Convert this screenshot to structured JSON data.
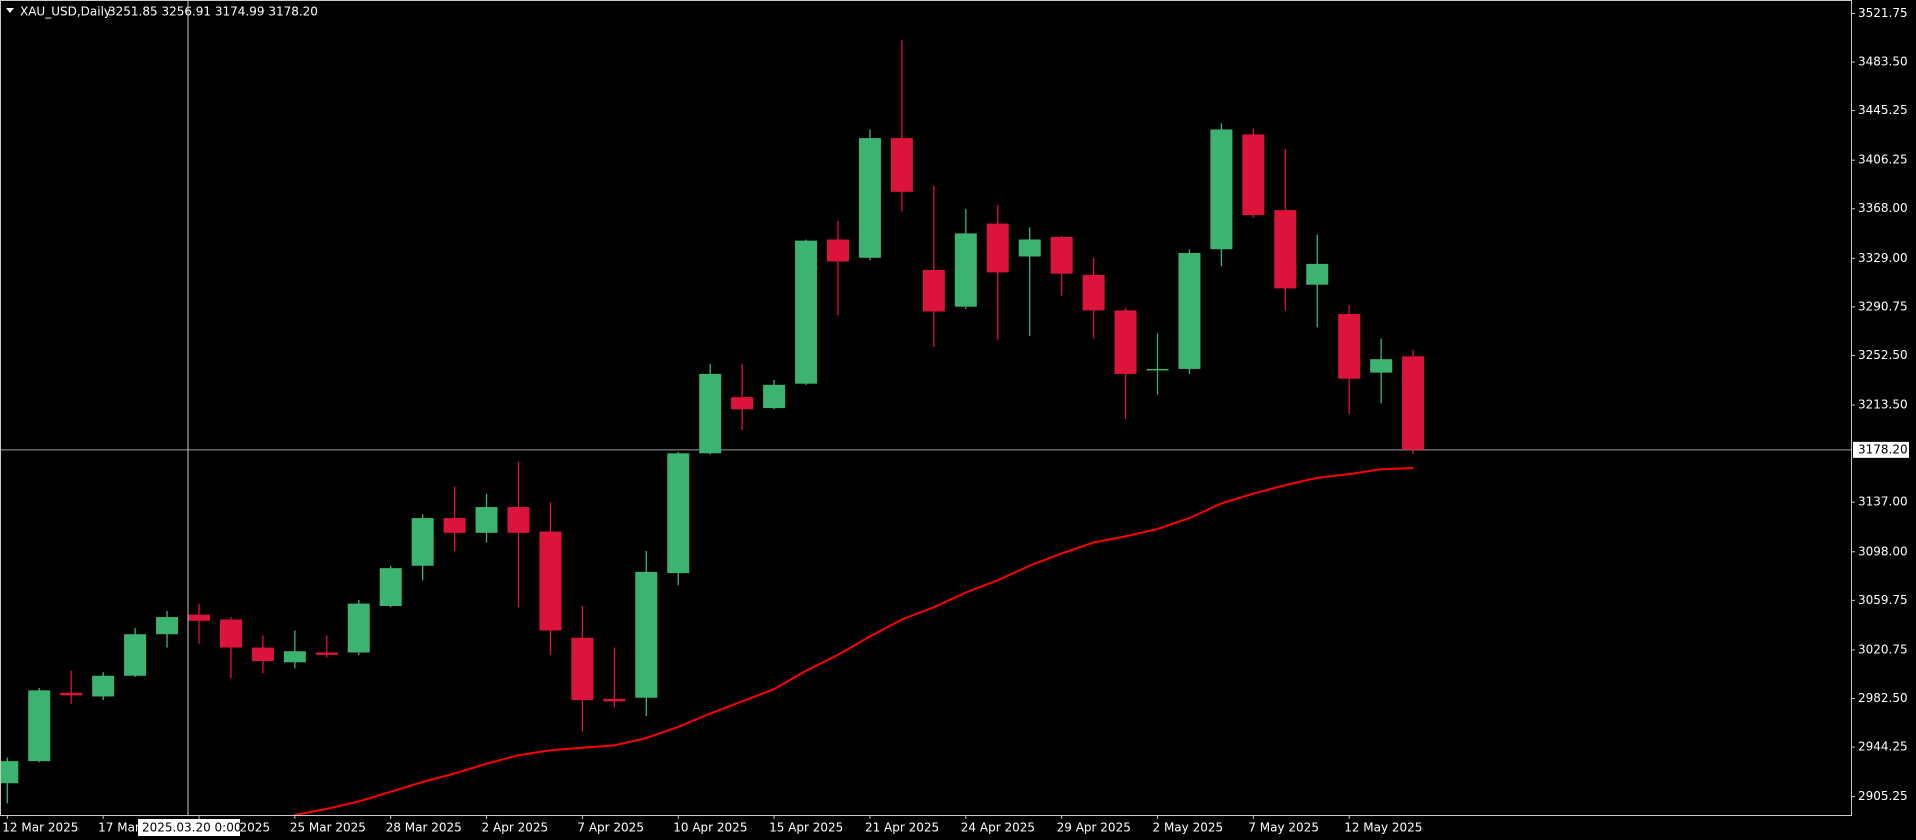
{
  "chart_data": {
    "type": "candlestick",
    "title": "XAU_USD,Daily",
    "header_ohlc": "3251.85 3256.91 3174.99 3178.20",
    "categories": [
      "12 Mar 2025",
      null,
      null,
      "17 Mar 2025",
      null,
      null,
      "20 Mar 2025",
      null,
      null,
      "25 Mar 2025",
      null,
      null,
      "28 Mar 2025",
      null,
      null,
      "2 Apr 2025",
      null,
      null,
      "7 Apr 2025",
      null,
      null,
      "10 Apr 2025",
      null,
      null,
      "15 Apr 2025",
      null,
      null,
      "21 Apr 2025",
      null,
      null,
      "24 Apr 2025",
      null,
      null,
      "29 Apr 2025",
      null,
      null,
      "2 May 2025",
      null,
      null,
      "7 May 2025",
      null,
      null,
      "12 May 2025",
      null,
      null
    ],
    "open": [
      2915.8,
      2933.2,
      2987.0,
      2984.1,
      3000.4,
      3033.1,
      3048.5,
      3044.7,
      3022.6,
      3011.0,
      3018.7,
      3018.7,
      3055.3,
      3087.0,
      3124.5,
      3112.9,
      3133.2,
      3113.9,
      3030.3,
      2982.2,
      2983.1,
      3081.2,
      3175.5,
      3219.7,
      3211.1,
      3230.3,
      3343.8,
      3329.4,
      3423.6,
      3319.8,
      3290.9,
      3356.3,
      3330.4,
      3345.8,
      3315.9,
      3288.0,
      3240.9,
      3241.9,
      3336.1,
      3426.5,
      3366.9,
      3308.2,
      3285.1,
      3239.0,
      3251.85
    ],
    "high": [
      2936.0,
      2990.8,
      3004.3,
      3003.3,
      3037.9,
      3051.4,
      3057.2,
      3046.6,
      3032.2,
      3036.0,
      3032.2,
      3060.1,
      3087.0,
      3127.4,
      3149.5,
      3143.7,
      3168.8,
      3137.0,
      3055.3,
      3022.6,
      3098.6,
      3176.5,
      3245.7,
      3245.7,
      3233.2,
      3343.8,
      3358.3,
      3430.4,
      3500.6,
      3386.1,
      3367.9,
      3370.8,
      3353.4,
      3346.7,
      3329.4,
      3290.0,
      3269.8,
      3336.1,
      3435.2,
      3431.3,
      3415.0,
      3347.7,
      3291.9,
      3265.9,
      3256.91
    ],
    "low": [
      2900.0,
      2932.2,
      2978.3,
      2981.2,
      2999.5,
      3022.6,
      3025.5,
      2998.5,
      3002.4,
      3006.2,
      3014.9,
      3016.8,
      3054.3,
      3075.5,
      3098.6,
      3105.3,
      3054.3,
      3016.8,
      2956.2,
      2975.4,
      2968.7,
      3071.6,
      3174.5,
      3193.8,
      3210.1,
      3229.4,
      3284.2,
      3327.5,
      3365.9,
      3259.2,
      3289.0,
      3265.0,
      3267.9,
      3299.6,
      3265.9,
      3202.4,
      3221.7,
      3238.0,
      3322.7,
      3361.1,
      3288.0,
      3274.6,
      3206.3,
      3214.9,
      3174.99
    ],
    "close": [
      2933.2,
      2988.9,
      2985.0,
      3000.4,
      3033.1,
      3046.6,
      3043.7,
      3022.6,
      3012.0,
      3019.7,
      3016.8,
      3057.2,
      3085.1,
      3124.5,
      3112.9,
      3133.2,
      3112.9,
      3036.0,
      2981.2,
      2980.2,
      3082.2,
      3175.5,
      3238.0,
      3210.1,
      3229.4,
      3342.9,
      3326.5,
      3423.6,
      3381.3,
      3287.1,
      3348.6,
      3317.9,
      3343.8,
      3316.9,
      3288.0,
      3238.0,
      3241.9,
      3333.2,
      3430.4,
      3363.0,
      3305.3,
      3324.6,
      3234.2,
      3249.6,
      3178.2
    ],
    "colors": {
      "up": "#3cb371",
      "down": "#dc143c"
    },
    "ma": {
      "color": "#ff0000",
      "values": [
        null,
        null,
        null,
        null,
        null,
        null,
        null,
        null,
        null,
        2890.8,
        2895.6,
        2901.4,
        2909.1,
        2916.8,
        2923.5,
        2931.2,
        2937.9,
        2941.8,
        2943.7,
        2945.6,
        2951.4,
        2960.1,
        2970.6,
        2980.2,
        2989.9,
        3004.3,
        3016.8,
        3031.3,
        3044.7,
        3054.3,
        3065.9,
        3075.5,
        3087.0,
        3096.6,
        3105.3,
        3110.1,
        3115.9,
        3124.5,
        3136.1,
        3143.7,
        3150.5,
        3156.2,
        3159.1,
        3163.0,
        3163.9
      ]
    },
    "ylim": [
      2890.8,
      3532.3
    ],
    "yticks": [
      3521.75,
      {
        "value": 3483.5,
        "label": "3483.50"
      },
      3445.25,
      3406.25,
      {
        "value": 3368,
        "label": "3368.00"
      },
      {
        "value": 3329,
        "label": "3329.00"
      },
      3290.75,
      {
        "value": 3252.5,
        "label": "3252.50"
      },
      {
        "value": 3213.5,
        "label": "3213.50"
      },
      {
        "value": 3137,
        "label": "3137.00"
      },
      {
        "value": 3098,
        "label": "3098.00"
      },
      3059.75,
      3020.75,
      {
        "value": 2982.5,
        "label": "2982.50"
      },
      2944.25,
      2905.25
    ],
    "last_price": {
      "value": 3178.2,
      "label": "3178.20"
    },
    "crosshair_label": "2025.03.20 0:00"
  }
}
